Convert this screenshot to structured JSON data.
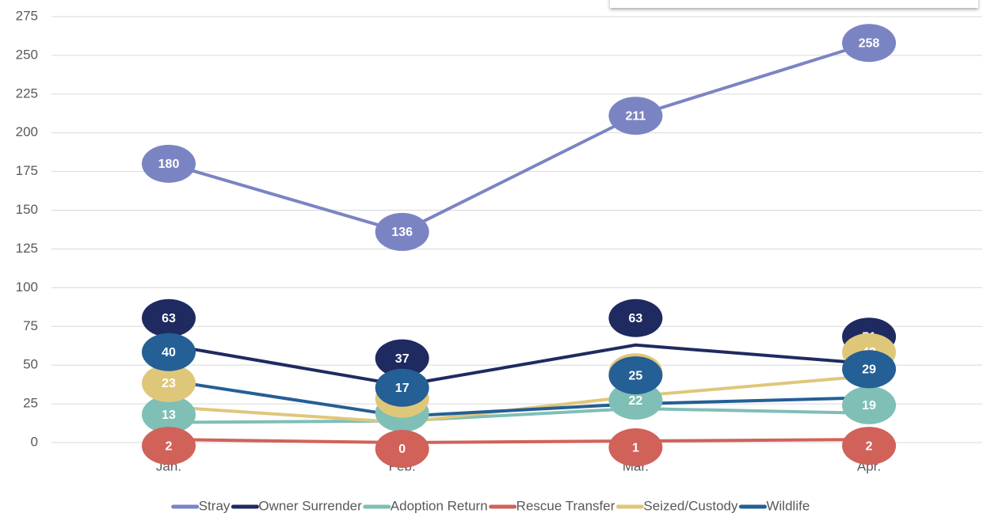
{
  "chart_data": {
    "type": "line",
    "categories": [
      "Jan.",
      "Feb.",
      "Mar.",
      "Apr."
    ],
    "series": [
      {
        "name": "Stray",
        "color": "#7b84c3",
        "values": [
          180,
          136,
          211,
          258
        ]
      },
      {
        "name": "Owner Surrender",
        "color": "#1f2a60",
        "values": [
          63,
          37,
          63,
          51
        ]
      },
      {
        "name": "Adoption Return",
        "color": "#7fbfb5",
        "values": [
          13,
          14,
          22,
          19
        ]
      },
      {
        "name": "Rescue Transfer",
        "color": "#d0625a",
        "values": [
          2,
          0,
          1,
          2
        ]
      },
      {
        "name": "Seized/Custody",
        "color": "#dfc77a",
        "values": [
          23,
          13,
          30,
          43
        ]
      },
      {
        "name": "Wildlife",
        "color": "#245f95",
        "values": [
          40,
          17,
          25,
          29
        ]
      }
    ],
    "ylim": [
      0,
      275
    ],
    "yticks": [
      0,
      25,
      50,
      75,
      100,
      125,
      150,
      175,
      200,
      225,
      250,
      275
    ],
    "grid": true,
    "legend": "bottom"
  }
}
